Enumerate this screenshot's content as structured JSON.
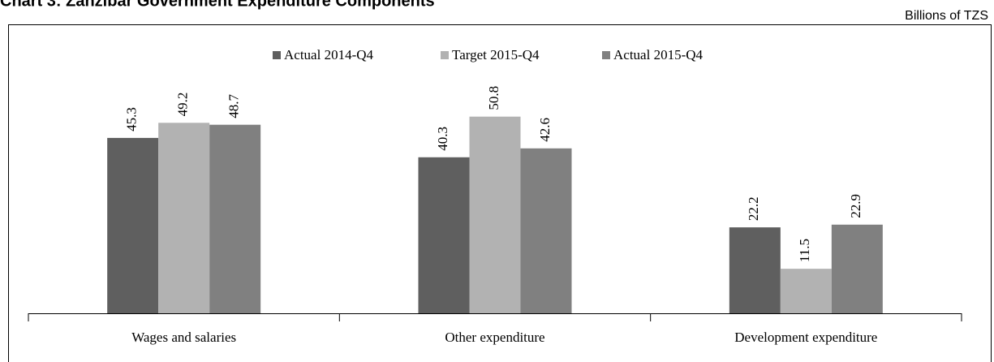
{
  "chart_data": {
    "type": "bar",
    "title": "Chart 3: Zanzibar Government Expenditure Components",
    "unit_label": "Billions of TZS",
    "categories": [
      "Wages and salaries",
      "Other expenditure",
      "Development expenditure"
    ],
    "series": [
      {
        "name": "Actual 2014-Q4",
        "color": "#5f5f5f",
        "values": [
          45.3,
          40.3,
          22.2
        ]
      },
      {
        "name": "Target 2015-Q4",
        "color": "#b2b2b2",
        "values": [
          49.2,
          50.8,
          11.5
        ]
      },
      {
        "name": "Actual 2015-Q4",
        "color": "#808080",
        "values": [
          48.7,
          42.6,
          22.9
        ]
      }
    ],
    "legend": "top"
  }
}
